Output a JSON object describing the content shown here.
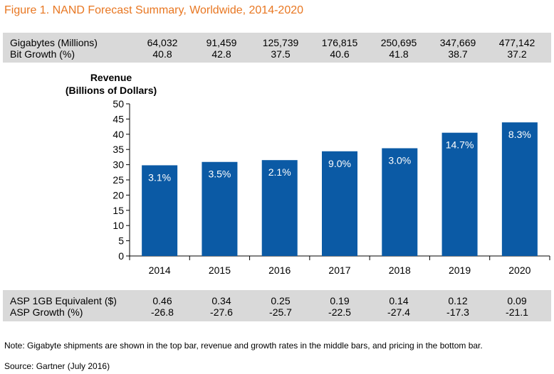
{
  "figure_title": "Figure 1. NAND Forecast Summary, Worldwide, 2014-2020",
  "top_table": {
    "rows": [
      {
        "label": "Gigabytes (Millions)",
        "values": [
          "64,032",
          "91,459",
          "125,739",
          "176,815",
          "250,695",
          "347,669",
          "477,142"
        ]
      },
      {
        "label": "Bit Growth (%)",
        "values": [
          "40.8",
          "42.8",
          "37.5",
          "40.6",
          "41.8",
          "38.7",
          "37.2"
        ]
      }
    ]
  },
  "bottom_table": {
    "rows": [
      {
        "label": "ASP 1GB Equivalent ($)",
        "values": [
          "0.46",
          "0.34",
          "0.25",
          "0.19",
          "0.14",
          "0.12",
          "0.09"
        ]
      },
      {
        "label": "ASP Growth (%)",
        "values": [
          "-26.8",
          "-27.6",
          "-25.7",
          "-22.5",
          "-27.4",
          "-17.3",
          "-21.1"
        ]
      }
    ]
  },
  "chart_data": {
    "type": "bar",
    "ylabel_lines": [
      "Revenue",
      "(Billions of Dollars)"
    ],
    "categories": [
      "2014",
      "2015",
      "2016",
      "2017",
      "2018",
      "2019",
      "2020"
    ],
    "values": [
      29.8,
      30.9,
      31.5,
      34.4,
      35.4,
      40.5,
      43.9
    ],
    "bar_labels": [
      "3.1%",
      "3.5%",
      "2.1%",
      "9.0%",
      "3.0%",
      "14.7%",
      "8.3%"
    ],
    "ylim": [
      0,
      50
    ],
    "yticks": [
      0,
      5,
      10,
      15,
      20,
      25,
      30,
      35,
      40,
      45,
      50
    ],
    "bar_color": "#0b5aa5",
    "grid": false
  },
  "colors": {
    "title": "#e87722",
    "band": "#d9d9d9",
    "bar": "#0b5aa5"
  },
  "note": "Note: Gigabyte shipments are shown in the top bar, revenue and growth rates in the middle bars, and pricing in the bottom bar.",
  "source": "Source: Gartner (July 2016)"
}
